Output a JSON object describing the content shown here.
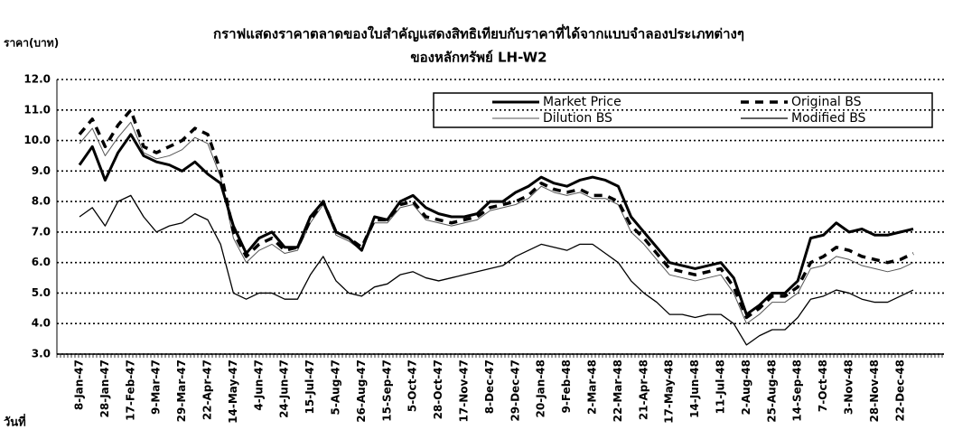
{
  "chart_data": {
    "type": "line",
    "title": "กราฟแสดงราคาตลาดของใบสำคัญแสดงสิทธิเทียบกับราคาที่ได้จากแบบจำลองประเภทต่างๆ",
    "subtitle": "ของหลักทรัพย์ LH-W2",
    "y_label": "ราคา(บาท)",
    "x_label": "วันที่",
    "categories": [
      "8-Jan-47",
      null,
      "28-Jan-47",
      null,
      "17-Feb-47",
      null,
      "9-Mar-47",
      null,
      "29-Mar-47",
      null,
      "22-Apr-47",
      null,
      "14-May-47",
      null,
      "4-Jun-47",
      null,
      "24-Jun-47",
      null,
      "15-Jul-47",
      null,
      "5-Aug-47",
      null,
      "26-Aug-47",
      null,
      "15-Sep-47",
      null,
      "5-Oct-47",
      null,
      "28-Oct-47",
      null,
      "17-Nov-47",
      null,
      "8-Dec-47",
      null,
      "29-Dec-47",
      null,
      "20-Jan-48",
      null,
      "9-Feb-48",
      null,
      "2-Mar-48",
      null,
      "22-Mar-48",
      null,
      "21-Apr-48",
      null,
      "17-May-48",
      null,
      "14-Jun-48",
      null,
      "11-Jul-48",
      null,
      "2-Aug-48",
      null,
      "25-Aug-48",
      null,
      "14-Sep-48",
      null,
      "7-Oct-48",
      null,
      "3-Nov-48",
      null,
      "28-Nov-48",
      null,
      "22-Dec-48",
      null
    ],
    "series": [
      {
        "name": "Market Price",
        "color": "#000000",
        "style": "thick",
        "values": [
          9.2,
          9.8,
          8.7,
          9.6,
          10.2,
          9.5,
          9.3,
          9.2,
          9.0,
          9.3,
          8.9,
          8.6,
          7.2,
          6.3,
          6.8,
          7.0,
          6.5,
          6.5,
          7.5,
          8.0,
          7.0,
          6.8,
          6.4,
          7.5,
          7.4,
          8.0,
          8.2,
          7.8,
          7.6,
          7.5,
          7.5,
          7.6,
          8.0,
          8.0,
          8.3,
          8.5,
          8.8,
          8.6,
          8.5,
          8.7,
          8.8,
          8.7,
          8.5,
          7.5,
          7.0,
          6.5,
          6.0,
          5.9,
          5.8,
          5.9,
          6.0,
          5.5,
          4.3,
          4.6,
          5.0,
          5.0,
          5.4,
          6.8,
          6.9,
          7.3,
          7.0,
          7.1,
          6.9,
          6.9,
          7.0,
          7.1
        ]
      },
      {
        "name": "Original BS",
        "color": "#000000",
        "style": "dashed",
        "values": [
          10.2,
          10.7,
          9.8,
          10.5,
          11.0,
          9.8,
          9.6,
          9.8,
          10.0,
          10.4,
          10.2,
          9.0,
          7.0,
          6.2,
          6.6,
          6.8,
          6.4,
          6.5,
          7.4,
          8.0,
          7.0,
          6.8,
          6.5,
          7.4,
          7.4,
          7.9,
          8.0,
          7.5,
          7.4,
          7.3,
          7.4,
          7.5,
          7.8,
          7.9,
          8.0,
          8.2,
          8.6,
          8.4,
          8.3,
          8.4,
          8.2,
          8.2,
          8.0,
          7.2,
          6.8,
          6.3,
          5.8,
          5.7,
          5.6,
          5.7,
          5.8,
          5.2,
          4.2,
          4.5,
          4.9,
          4.9,
          5.2,
          6.0,
          6.2,
          6.5,
          6.4,
          6.2,
          6.1,
          6.0,
          6.1,
          6.3
        ]
      },
      {
        "name": "Dilution BS",
        "color": "#555555",
        "style": "thin",
        "values": [
          9.9,
          10.4,
          9.5,
          10.1,
          10.6,
          9.6,
          9.4,
          9.5,
          9.7,
          10.1,
          9.9,
          8.8,
          6.8,
          6.0,
          6.4,
          6.6,
          6.3,
          6.4,
          7.3,
          7.9,
          6.9,
          6.7,
          6.4,
          7.3,
          7.3,
          7.8,
          7.9,
          7.4,
          7.3,
          7.2,
          7.3,
          7.4,
          7.7,
          7.8,
          7.9,
          8.1,
          8.5,
          8.3,
          8.2,
          8.3,
          8.1,
          8.1,
          7.9,
          7.0,
          6.6,
          6.1,
          5.6,
          5.5,
          5.4,
          5.5,
          5.6,
          5.0,
          4.0,
          4.3,
          4.7,
          4.7,
          5.0,
          5.8,
          5.9,
          6.2,
          6.1,
          5.9,
          5.8,
          5.7,
          5.8,
          6.0
        ]
      },
      {
        "name": "Modified BS",
        "color": "#000000",
        "style": "solid",
        "values": [
          7.5,
          7.8,
          7.2,
          8.0,
          8.2,
          7.5,
          7.0,
          7.2,
          7.3,
          7.6,
          7.4,
          6.6,
          5.0,
          4.8,
          5.0,
          5.0,
          4.8,
          4.8,
          5.6,
          6.2,
          5.4,
          5.0,
          4.9,
          5.2,
          5.3,
          5.6,
          5.7,
          5.5,
          5.4,
          5.5,
          5.6,
          5.7,
          5.8,
          5.9,
          6.2,
          6.4,
          6.6,
          6.5,
          6.4,
          6.6,
          6.6,
          6.3,
          6.0,
          5.4,
          5.0,
          4.7,
          4.3,
          4.3,
          4.2,
          4.3,
          4.3,
          4.0,
          3.3,
          3.6,
          3.8,
          3.8,
          4.2,
          4.8,
          4.9,
          5.1,
          5.0,
          4.8,
          4.7,
          4.7,
          4.9,
          5.1
        ]
      }
    ],
    "ylim": [
      3,
      12
    ],
    "yticks": [
      {
        "value": 3,
        "label": "3.0"
      },
      {
        "value": 4,
        "label": "4.0"
      },
      {
        "value": 5,
        "label": "5.0"
      },
      {
        "value": 6,
        "label": "6.0"
      },
      {
        "value": 7,
        "label": "7.0"
      },
      {
        "value": 8,
        "label": "8.0"
      },
      {
        "value": 9,
        "label": "9.0"
      },
      {
        "value": 10,
        "label": "10.0"
      },
      {
        "value": 11,
        "label": "11.0"
      },
      {
        "value": 12,
        "label": "12.0"
      }
    ],
    "grid": true,
    "legend": "top-right"
  }
}
